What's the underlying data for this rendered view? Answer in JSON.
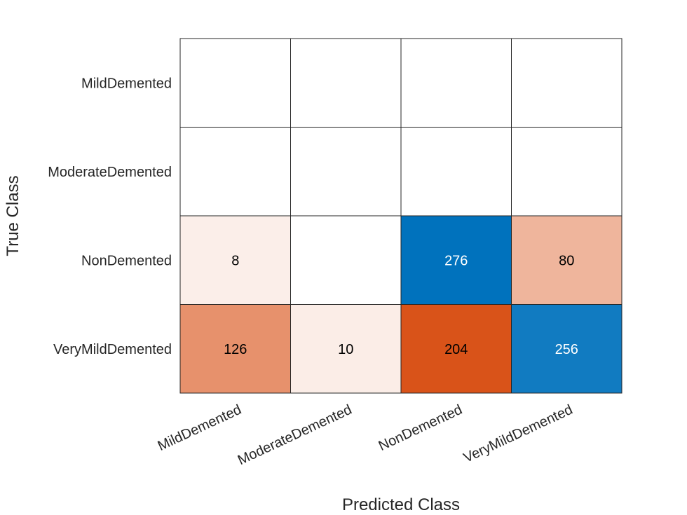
{
  "chart_data": {
    "type": "heatmap",
    "xlabel": "Predicted Class",
    "ylabel": "True Class",
    "x_categories": [
      "MildDemented",
      "ModerateDemented",
      "NonDemented",
      "VeryMildDemented"
    ],
    "y_categories": [
      "MildDemented",
      "ModerateDemented",
      "NonDemented",
      "VeryMildDemented"
    ],
    "values": [
      [
        null,
        null,
        null,
        null
      ],
      [
        null,
        null,
        null,
        null
      ],
      [
        8,
        null,
        276,
        80
      ],
      [
        126,
        10,
        204,
        256
      ]
    ],
    "colors": {
      "correct": "#0072BD",
      "incorrect": "#D95319",
      "background": "#ffffff",
      "grid": "#262626"
    }
  }
}
